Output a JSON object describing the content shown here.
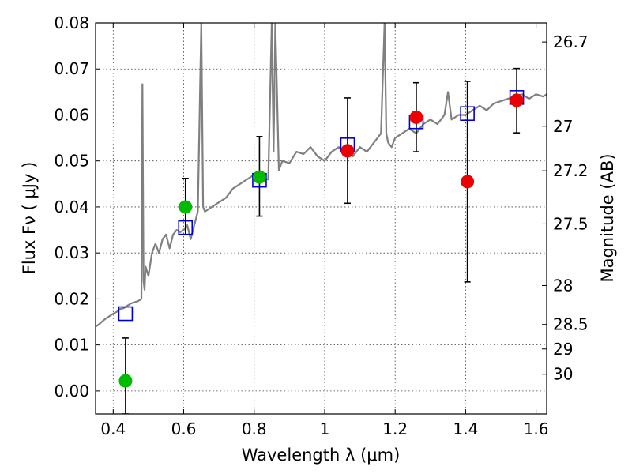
{
  "chart_data": {
    "type": "scatter",
    "xlabel": "Wavelength  λ (μm)",
    "ylabel": "Flux  Fν  ( μJy )",
    "y2label": "Magnitude (AB)",
    "xlim": [
      0.35,
      1.63
    ],
    "ylim": [
      -0.005,
      0.08
    ],
    "x_ticks": [
      0.4,
      0.6,
      0.8,
      1.0,
      1.2,
      1.4,
      1.6
    ],
    "x_tick_labels": [
      "0.4",
      "0.6",
      "0.8",
      "1",
      "1.2",
      "1.4",
      "1.6"
    ],
    "y_ticks": [
      0.0,
      0.01,
      0.02,
      0.03,
      0.04,
      0.05,
      0.06,
      0.07,
      0.08
    ],
    "y_tick_labels": [
      "0.00",
      "0.01",
      "0.02",
      "0.03",
      "0.04",
      "0.05",
      "0.06",
      "0.07",
      "0.08"
    ],
    "mag_ticks": [
      26.7,
      27,
      27.2,
      27.5,
      28,
      28.5,
      29,
      30
    ],
    "mag_tick_labels": [
      "26.7",
      "27",
      "27.2",
      "27.5",
      "28",
      "28.5",
      "29",
      "30"
    ],
    "grid": true,
    "colors": {
      "model": "#808080",
      "model_points": "#0000cc",
      "green_points": "#00bb00",
      "red_points": "#ee0000",
      "error_bars": "#000000"
    },
    "model_sed": {
      "x": [
        0.35,
        0.36,
        0.37,
        0.38,
        0.39,
        0.4,
        0.41,
        0.42,
        0.43,
        0.44,
        0.45,
        0.46,
        0.47,
        0.48,
        0.483,
        0.486,
        0.489,
        0.492,
        0.5,
        0.51,
        0.52,
        0.53,
        0.54,
        0.55,
        0.56,
        0.57,
        0.58,
        0.59,
        0.6,
        0.61,
        0.62,
        0.63,
        0.64,
        0.65,
        0.655,
        0.66,
        0.67,
        0.68,
        0.7,
        0.72,
        0.74,
        0.76,
        0.78,
        0.8,
        0.82,
        0.84,
        0.85,
        0.855,
        0.86,
        0.87,
        0.88,
        0.9,
        0.92,
        0.94,
        0.96,
        0.98,
        1.0,
        1.02,
        1.04,
        1.06,
        1.08,
        1.1,
        1.12,
        1.14,
        1.16,
        1.17,
        1.175,
        1.18,
        1.19,
        1.2,
        1.22,
        1.24,
        1.26,
        1.28,
        1.3,
        1.32,
        1.33,
        1.34,
        1.35,
        1.36,
        1.38,
        1.4,
        1.42,
        1.44,
        1.46,
        1.48,
        1.5,
        1.52,
        1.54,
        1.56,
        1.58,
        1.6,
        1.62,
        1.63
      ],
      "y": [
        0.014,
        0.0145,
        0.0152,
        0.0158,
        0.0163,
        0.0168,
        0.0172,
        0.0178,
        0.018,
        0.0185,
        0.019,
        0.0193,
        0.0195,
        0.02,
        0.0667,
        0.024,
        0.022,
        0.027,
        0.025,
        0.03,
        0.032,
        0.03,
        0.033,
        0.034,
        0.031,
        0.034,
        0.035,
        0.0345,
        0.035,
        0.036,
        0.033,
        0.036,
        0.039,
        0.08,
        0.04,
        0.039,
        0.0395,
        0.04,
        0.041,
        0.042,
        0.044,
        0.045,
        0.046,
        0.047,
        0.046,
        0.046,
        0.08,
        0.052,
        0.08,
        0.048,
        0.05,
        0.0495,
        0.052,
        0.0515,
        0.053,
        0.051,
        0.05,
        0.052,
        0.053,
        0.052,
        0.051,
        0.053,
        0.052,
        0.054,
        0.056,
        0.08,
        0.056,
        0.054,
        0.053,
        0.055,
        0.056,
        0.057,
        0.056,
        0.058,
        0.059,
        0.058,
        0.059,
        0.06,
        0.065,
        0.059,
        0.06,
        0.06,
        0.061,
        0.062,
        0.061,
        0.0625,
        0.063,
        0.0635,
        0.064,
        0.0645,
        0.0635,
        0.0645,
        0.064,
        0.0645
      ]
    },
    "model_points": {
      "x": [
        0.435,
        0.605,
        0.815,
        1.065,
        1.26,
        1.405,
        1.545
      ],
      "y": [
        0.0168,
        0.0355,
        0.0458,
        0.0535,
        0.0585,
        0.0603,
        0.0638
      ]
    },
    "green_points": {
      "x": [
        0.435,
        0.605,
        0.815
      ],
      "y": [
        0.0022,
        0.04,
        0.0465
      ],
      "yerr_low": [
        -0.005,
        0.034,
        0.038
      ],
      "yerr_high": [
        0.0115,
        0.0462,
        0.0553
      ]
    },
    "red_points": {
      "x": [
        1.065,
        1.26,
        1.405,
        1.545
      ],
      "y": [
        0.0522,
        0.0595,
        0.0455,
        0.0632
      ],
      "yerr_low": [
        0.0408,
        0.052,
        0.0237,
        0.0561
      ],
      "yerr_high": [
        0.0637,
        0.067,
        0.0673,
        0.0701
      ]
    }
  }
}
